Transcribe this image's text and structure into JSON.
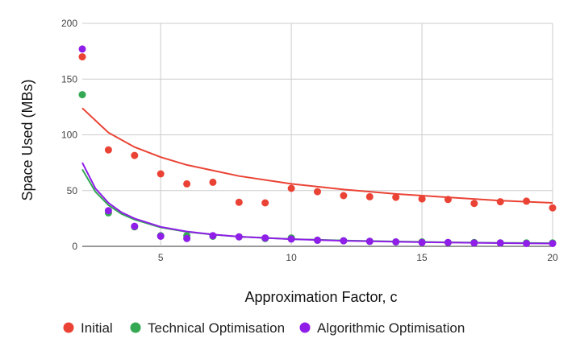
{
  "chart_data": {
    "type": "scatter",
    "title": "",
    "xlabel": "Approximation Factor, c",
    "ylabel": "Space Used (MBs)",
    "xlim": [
      2,
      20
    ],
    "ylim": [
      0,
      200
    ],
    "x_ticks": [
      "5",
      "10",
      "15",
      "20"
    ],
    "y_ticks": [
      "0",
      "50",
      "100",
      "150",
      "200"
    ],
    "grid": true,
    "legend_position": "bottom",
    "trendlines": "power fit per series",
    "series": [
      {
        "name": "Initial",
        "color": "#ea4335",
        "points": [
          {
            "x": 2,
            "y": 170
          },
          {
            "x": 3,
            "y": 86.5
          },
          {
            "x": 4,
            "y": 81.5
          },
          {
            "x": 5,
            "y": 65
          },
          {
            "x": 6,
            "y": 56
          },
          {
            "x": 7,
            "y": 57.5
          },
          {
            "x": 8,
            "y": 39.5
          },
          {
            "x": 9,
            "y": 39
          },
          {
            "x": 10,
            "y": 52
          },
          {
            "x": 11,
            "y": 49
          },
          {
            "x": 12,
            "y": 45.5
          },
          {
            "x": 13,
            "y": 44.5
          },
          {
            "x": 14,
            "y": 44
          },
          {
            "x": 15,
            "y": 42.5
          },
          {
            "x": 16,
            "y": 42
          },
          {
            "x": 17,
            "y": 38.5
          },
          {
            "x": 18,
            "y": 40
          },
          {
            "x": 19,
            "y": 40.5
          },
          {
            "x": 20,
            "y": 34.5
          }
        ],
        "trend": [
          {
            "x": 2,
            "y": 124
          },
          {
            "x": 3,
            "y": 102
          },
          {
            "x": 4,
            "y": 89
          },
          {
            "x": 5,
            "y": 80
          },
          {
            "x": 6,
            "y": 73
          },
          {
            "x": 8,
            "y": 63
          },
          {
            "x": 10,
            "y": 56
          },
          {
            "x": 12,
            "y": 51
          },
          {
            "x": 14,
            "y": 47
          },
          {
            "x": 16,
            "y": 44
          },
          {
            "x": 18,
            "y": 41
          },
          {
            "x": 20,
            "y": 39
          }
        ]
      },
      {
        "name": "Technical Optimisation",
        "color": "#34a853",
        "points": [
          {
            "x": 2,
            "y": 136
          },
          {
            "x": 3,
            "y": 30
          },
          {
            "x": 4,
            "y": 17.5
          },
          {
            "x": 5,
            "y": 9.5
          },
          {
            "x": 6,
            "y": 9.5
          },
          {
            "x": 7,
            "y": 9
          },
          {
            "x": 8,
            "y": 8.5
          },
          {
            "x": 9,
            "y": 7
          },
          {
            "x": 10,
            "y": 7.5
          },
          {
            "x": 11,
            "y": 5.5
          },
          {
            "x": 12,
            "y": 5
          },
          {
            "x": 13,
            "y": 4.5
          },
          {
            "x": 14,
            "y": 4
          },
          {
            "x": 15,
            "y": 4
          },
          {
            "x": 16,
            "y": 3.5
          },
          {
            "x": 17,
            "y": 3.5
          },
          {
            "x": 18,
            "y": 3
          },
          {
            "x": 19,
            "y": 3
          },
          {
            "x": 20,
            "y": 3
          }
        ],
        "trend": [
          {
            "x": 2,
            "y": 69
          },
          {
            "x": 2.5,
            "y": 49
          },
          {
            "x": 3,
            "y": 37
          },
          {
            "x": 3.5,
            "y": 29
          },
          {
            "x": 4,
            "y": 24
          },
          {
            "x": 5,
            "y": 17
          },
          {
            "x": 6,
            "y": 13
          },
          {
            "x": 7,
            "y": 10.5
          },
          {
            "x": 8,
            "y": 8.7
          },
          {
            "x": 10,
            "y": 6.5
          },
          {
            "x": 12,
            "y": 5.2
          },
          {
            "x": 14,
            "y": 4.3
          },
          {
            "x": 16,
            "y": 3.6
          },
          {
            "x": 18,
            "y": 3.1
          },
          {
            "x": 20,
            "y": 2.8
          }
        ]
      },
      {
        "name": "Algorithmic Optimisation",
        "color": "#8f1ee8",
        "points": [
          {
            "x": 2,
            "y": 177
          },
          {
            "x": 3,
            "y": 32
          },
          {
            "x": 4,
            "y": 18
          },
          {
            "x": 5,
            "y": 9
          },
          {
            "x": 6,
            "y": 7
          },
          {
            "x": 7,
            "y": 9.5
          },
          {
            "x": 8,
            "y": 8.5
          },
          {
            "x": 9,
            "y": 7.5
          },
          {
            "x": 10,
            "y": 6.5
          },
          {
            "x": 11,
            "y": 5.5
          },
          {
            "x": 12,
            "y": 5
          },
          {
            "x": 13,
            "y": 4.5
          },
          {
            "x": 14,
            "y": 4
          },
          {
            "x": 15,
            "y": 3.5
          },
          {
            "x": 16,
            "y": 3.5
          },
          {
            "x": 17,
            "y": 3
          },
          {
            "x": 18,
            "y": 3
          },
          {
            "x": 19,
            "y": 2.5
          },
          {
            "x": 20,
            "y": 2.5
          }
        ],
        "trend": [
          {
            "x": 2,
            "y": 75
          },
          {
            "x": 2.5,
            "y": 52
          },
          {
            "x": 3,
            "y": 39
          },
          {
            "x": 3.5,
            "y": 30.5
          },
          {
            "x": 4,
            "y": 25
          },
          {
            "x": 5,
            "y": 17.5
          },
          {
            "x": 6,
            "y": 13.3
          },
          {
            "x": 7,
            "y": 10.6
          },
          {
            "x": 8,
            "y": 8.7
          },
          {
            "x": 10,
            "y": 6.4
          },
          {
            "x": 12,
            "y": 5
          },
          {
            "x": 14,
            "y": 4.1
          },
          {
            "x": 16,
            "y": 3.4
          },
          {
            "x": 18,
            "y": 2.9
          },
          {
            "x": 20,
            "y": 2.5
          }
        ]
      }
    ]
  }
}
